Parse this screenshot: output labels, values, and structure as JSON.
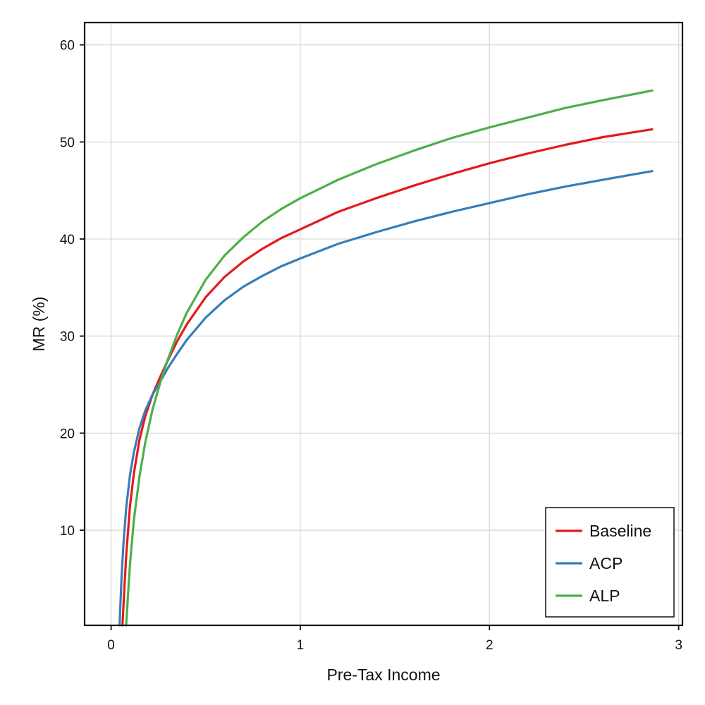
{
  "chart_data": {
    "type": "line",
    "title": "",
    "xlabel": "Pre-Tax Income",
    "ylabel": "MR (%)",
    "xlim": [
      -0.14,
      3.02
    ],
    "ylim": [
      0.2,
      62.3
    ],
    "xticks": [
      0,
      1,
      2,
      3
    ],
    "yticks": [
      10,
      20,
      30,
      40,
      50,
      60
    ],
    "grid": true,
    "legend_position": "bottom-right",
    "series": [
      {
        "name": "Baseline",
        "color": "#e41a1c",
        "x": [
          0.06,
          0.07,
          0.08,
          0.1,
          0.12,
          0.15,
          0.18,
          0.22,
          0.26,
          0.3,
          0.35,
          0.4,
          0.5,
          0.6,
          0.7,
          0.8,
          0.9,
          1.0,
          1.2,
          1.4,
          1.6,
          1.8,
          2.0,
          2.2,
          2.4,
          2.6,
          2.86
        ],
        "y": [
          0.2,
          4.0,
          7.4,
          12.5,
          15.8,
          19.3,
          21.7,
          24.0,
          25.8,
          27.5,
          29.5,
          31.2,
          34.0,
          36.1,
          37.7,
          39.0,
          40.1,
          41.0,
          42.8,
          44.2,
          45.5,
          46.7,
          47.8,
          48.8,
          49.7,
          50.5,
          51.3
        ]
      },
      {
        "name": "ACP",
        "color": "#377eb8",
        "x": [
          0.045,
          0.055,
          0.065,
          0.08,
          0.1,
          0.12,
          0.15,
          0.18,
          0.22,
          0.26,
          0.3,
          0.35,
          0.4,
          0.5,
          0.6,
          0.7,
          0.8,
          0.9,
          1.0,
          1.2,
          1.4,
          1.6,
          1.8,
          2.0,
          2.2,
          2.4,
          2.6,
          2.86
        ],
        "y": [
          0.2,
          5.0,
          8.5,
          12.3,
          15.7,
          18.0,
          20.5,
          22.3,
          24.0,
          25.3,
          26.7,
          28.2,
          29.6,
          31.9,
          33.7,
          35.1,
          36.2,
          37.2,
          38.0,
          39.5,
          40.7,
          41.8,
          42.8,
          43.7,
          44.6,
          45.4,
          46.1,
          47.0
        ]
      },
      {
        "name": "ALP",
        "color": "#4daf4a",
        "x": [
          0.08,
          0.09,
          0.1,
          0.12,
          0.15,
          0.18,
          0.22,
          0.26,
          0.3,
          0.35,
          0.4,
          0.5,
          0.6,
          0.7,
          0.8,
          0.9,
          1.0,
          1.2,
          1.4,
          1.6,
          1.8,
          2.0,
          2.2,
          2.4,
          2.6,
          2.86
        ],
        "y": [
          0.2,
          3.5,
          6.5,
          11.0,
          15.5,
          19.0,
          22.5,
          25.2,
          27.6,
          30.2,
          32.4,
          35.8,
          38.3,
          40.2,
          41.8,
          43.1,
          44.2,
          46.1,
          47.7,
          49.1,
          50.4,
          51.5,
          52.5,
          53.5,
          54.3,
          55.3
        ]
      }
    ]
  }
}
